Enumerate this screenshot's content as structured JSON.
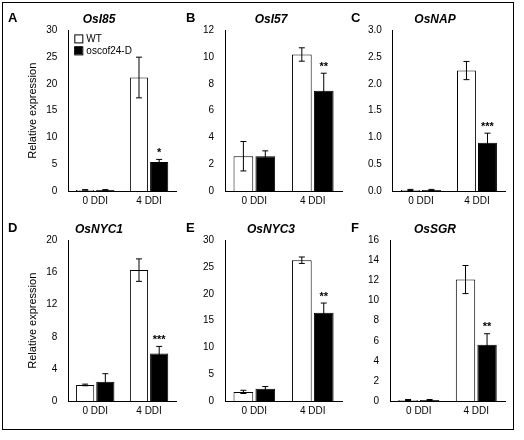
{
  "chart_data": [
    {
      "type": "bar",
      "panel": "A",
      "title": "OsI85",
      "y_label": "Relative expression",
      "legend": "top-left",
      "grid": false,
      "categories": [
        "0 DDI",
        "4 DDI"
      ],
      "series": [
        {
          "name": "WT",
          "color": "#ffffff",
          "values": [
            0.2,
            21.2
          ],
          "errors": [
            0.05,
            3.8
          ]
        },
        {
          "name": "oscof24-D",
          "color": "#000000",
          "values": [
            0.2,
            5.4
          ],
          "errors": [
            0.05,
            0.5
          ],
          "significance": [
            null,
            "*"
          ]
        }
      ],
      "ylim": [
        0,
        30
      ],
      "yticks": [
        0,
        5,
        10,
        15,
        20,
        25,
        30
      ]
    },
    {
      "type": "bar",
      "panel": "B",
      "title": "OsI57",
      "grid": false,
      "categories": [
        "0 DDI",
        "4 DDI"
      ],
      "series": [
        {
          "name": "WT",
          "color": "#ffffff",
          "values": [
            2.6,
            10.2
          ],
          "errors": [
            1.1,
            0.5
          ]
        },
        {
          "name": "oscof24-D",
          "color": "#000000",
          "values": [
            2.6,
            7.5
          ],
          "errors": [
            0.4,
            1.3
          ],
          "significance": [
            null,
            "**"
          ]
        }
      ],
      "ylim": [
        0,
        12
      ],
      "yticks": [
        0,
        2,
        4,
        6,
        8,
        10,
        12
      ]
    },
    {
      "type": "bar",
      "panel": "C",
      "title": "OsNAP",
      "grid": false,
      "categories": [
        "0 DDI",
        "4 DDI"
      ],
      "series": [
        {
          "name": "WT",
          "color": "#ffffff",
          "values": [
            0.02,
            2.25
          ],
          "errors": [
            0.01,
            0.17
          ]
        },
        {
          "name": "oscof24-D",
          "color": "#000000",
          "values": [
            0.02,
            0.9
          ],
          "errors": [
            0.01,
            0.18
          ],
          "significance": [
            null,
            "***"
          ]
        }
      ],
      "ylim": [
        0,
        3
      ],
      "yticks": [
        {
          "value": 0,
          "label": "0.0"
        },
        0.5,
        {
          "value": 1,
          "label": "1.0"
        },
        1.5,
        {
          "value": 2,
          "label": "2.0"
        },
        2.5,
        {
          "value": 3,
          "label": "3.0"
        }
      ]
    },
    {
      "type": "bar",
      "panel": "D",
      "title": "OsNYC1",
      "y_label": "Relative expression",
      "grid": false,
      "categories": [
        "0 DDI",
        "4 DDI"
      ],
      "series": [
        {
          "name": "WT",
          "color": "#ffffff",
          "values": [
            2.0,
            16.3
          ],
          "errors": [
            0.1,
            1.4
          ]
        },
        {
          "name": "oscof24-D",
          "color": "#000000",
          "values": [
            2.4,
            5.9
          ],
          "errors": [
            1.0,
            0.9
          ],
          "significance": [
            null,
            "***"
          ]
        }
      ],
      "ylim": [
        0,
        20
      ],
      "yticks": [
        0,
        4,
        8,
        12,
        16,
        20
      ]
    },
    {
      "type": "bar",
      "panel": "E",
      "title": "OsNYC3",
      "grid": false,
      "categories": [
        "0 DDI",
        "4 DDI"
      ],
      "series": [
        {
          "name": "WT",
          "color": "#ffffff",
          "values": [
            1.7,
            26.3
          ],
          "errors": [
            0.3,
            0.6
          ]
        },
        {
          "name": "oscof24-D",
          "color": "#000000",
          "values": [
            2.3,
            16.5
          ],
          "errors": [
            0.4,
            1.8
          ],
          "significance": [
            null,
            "**"
          ]
        }
      ],
      "ylim": [
        0,
        30
      ],
      "yticks": [
        0,
        5,
        10,
        15,
        20,
        25,
        30
      ]
    },
    {
      "type": "bar",
      "panel": "F",
      "title": "OsSGR",
      "grid": false,
      "categories": [
        "0 DDI",
        "4 DDI"
      ],
      "series": [
        {
          "name": "WT",
          "color": "#ffffff",
          "values": [
            0.1,
            12.1
          ],
          "errors": [
            0.05,
            1.4
          ]
        },
        {
          "name": "oscof24-D",
          "color": "#000000",
          "values": [
            0.1,
            5.6
          ],
          "errors": [
            0.05,
            1.1
          ],
          "significance": [
            null,
            "**"
          ]
        }
      ],
      "ylim": [
        0,
        16
      ],
      "yticks": [
        0,
        2,
        4,
        6,
        8,
        10,
        12,
        14,
        16
      ]
    }
  ]
}
